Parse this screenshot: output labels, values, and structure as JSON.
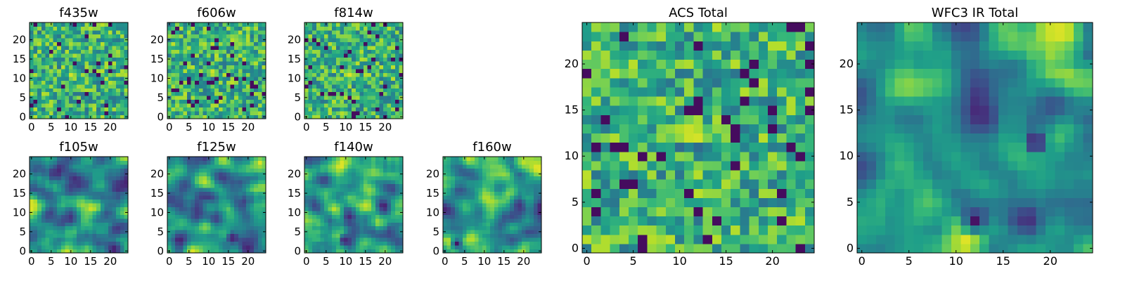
{
  "figure": {
    "panels": [
      "f435w",
      "f606w",
      "f814w",
      "f105w",
      "f125w",
      "f140w",
      "f160w",
      "ACS Total",
      "WFC3 IR Total"
    ]
  },
  "chart_data": [
    {
      "type": "heatmap",
      "title": "f435w",
      "colormap": "viridis",
      "xlim": [
        -0.5,
        24.5
      ],
      "ylim": [
        -0.5,
        24.5
      ],
      "xticks": [
        0,
        5,
        10,
        15,
        20
      ],
      "yticks": [
        0,
        5,
        10,
        15,
        20
      ],
      "grid_size": 25,
      "texture": "noise",
      "features": [
        {
          "x": 10.5,
          "y": 11,
          "radius": 1.8,
          "value": 0.95
        }
      ]
    },
    {
      "type": "heatmap",
      "title": "f606w",
      "colormap": "viridis",
      "xlim": [
        -0.5,
        24.5
      ],
      "ylim": [
        -0.5,
        24.5
      ],
      "xticks": [
        0,
        5,
        10,
        15,
        20
      ],
      "yticks": [
        0,
        5,
        10,
        15,
        20
      ],
      "grid_size": 25,
      "texture": "noise",
      "features": [
        {
          "x": 11,
          "y": 11.5,
          "radius": 1.8,
          "value": 0.95
        }
      ]
    },
    {
      "type": "heatmap",
      "title": "f814w",
      "colormap": "viridis",
      "xlim": [
        -0.5,
        24.5
      ],
      "ylim": [
        -0.5,
        24.5
      ],
      "xticks": [
        0,
        5,
        10,
        15,
        20
      ],
      "yticks": [
        0,
        5,
        10,
        15,
        20
      ],
      "grid_size": 25,
      "texture": "noise",
      "features": [
        {
          "x": 11,
          "y": 11,
          "radius": 1.5,
          "value": 0.95
        }
      ]
    },
    {
      "type": "heatmap",
      "title": "f105w",
      "colormap": "viridis",
      "xlim": [
        -0.5,
        24.5
      ],
      "ylim": [
        -0.5,
        24.5
      ],
      "xticks": [
        0,
        5,
        10,
        15,
        20
      ],
      "yticks": [
        0,
        5,
        10,
        15,
        20
      ],
      "grid_size": 25,
      "texture": "smooth",
      "features": [
        {
          "x": 21,
          "y": 0.5,
          "radius": 2.5,
          "value": 0.02
        }
      ]
    },
    {
      "type": "heatmap",
      "title": "f125w",
      "colormap": "viridis",
      "xlim": [
        -0.5,
        24.5
      ],
      "ylim": [
        -0.5,
        24.5
      ],
      "xticks": [
        0,
        5,
        10,
        15,
        20
      ],
      "yticks": [
        0,
        5,
        10,
        15,
        20
      ],
      "grid_size": 25,
      "texture": "smooth",
      "features": [
        {
          "x": 16,
          "y": 3.5,
          "radius": 1.5,
          "value": 0.02
        },
        {
          "x": 23,
          "y": 23,
          "radius": 2.5,
          "value": 0.95
        }
      ]
    },
    {
      "type": "heatmap",
      "title": "f140w",
      "colormap": "viridis",
      "xlim": [
        -0.5,
        24.5
      ],
      "ylim": [
        -0.5,
        24.5
      ],
      "xticks": [
        0,
        5,
        10,
        15,
        20
      ],
      "yticks": [
        0,
        5,
        10,
        15,
        20
      ],
      "grid_size": 25,
      "texture": "smooth",
      "features": [
        {
          "x": 9.5,
          "y": 3,
          "radius": 1.3,
          "value": 0.05
        }
      ]
    },
    {
      "type": "heatmap",
      "title": "f160w",
      "colormap": "viridis",
      "xlim": [
        -0.5,
        24.5
      ],
      "ylim": [
        -0.5,
        24.5
      ],
      "xticks": [
        0,
        5,
        10,
        15,
        20
      ],
      "yticks": [
        0,
        5,
        10,
        15,
        20
      ],
      "grid_size": 25,
      "texture": "smooth",
      "features": [
        {
          "x": 3,
          "y": 2,
          "radius": 1.5,
          "value": 0.05
        },
        {
          "x": 20,
          "y": 23,
          "radius": 3,
          "value": 0.9
        }
      ]
    },
    {
      "type": "heatmap",
      "title": "ACS Total",
      "colormap": "viridis",
      "xlim": [
        -0.5,
        24.5
      ],
      "ylim": [
        -0.5,
        24.5
      ],
      "xticks": [
        0,
        5,
        10,
        15,
        20
      ],
      "yticks": [
        0,
        5,
        10,
        15,
        20
      ],
      "grid_size": 25,
      "texture": "noise",
      "features": [
        {
          "x": 11,
          "y": 12.5,
          "radius": 2.2,
          "value": 1.0
        }
      ]
    },
    {
      "type": "heatmap",
      "title": "WFC3 IR Total",
      "colormap": "viridis",
      "xlim": [
        -0.5,
        24.5
      ],
      "ylim": [
        -0.5,
        24.5
      ],
      "xticks": [
        0,
        5,
        10,
        15,
        20
      ],
      "yticks": [
        0,
        5,
        10,
        15,
        20
      ],
      "grid_size": 25,
      "texture": "smooth",
      "features": [
        {
          "x": 21.5,
          "y": 23.5,
          "radius": 3.5,
          "value": 1.0
        },
        {
          "x": 18.5,
          "y": 11.5,
          "radius": 1.2,
          "value": 0.0
        },
        {
          "x": 12,
          "y": 3,
          "radius": 1.5,
          "value": 0.05
        }
      ]
    }
  ]
}
